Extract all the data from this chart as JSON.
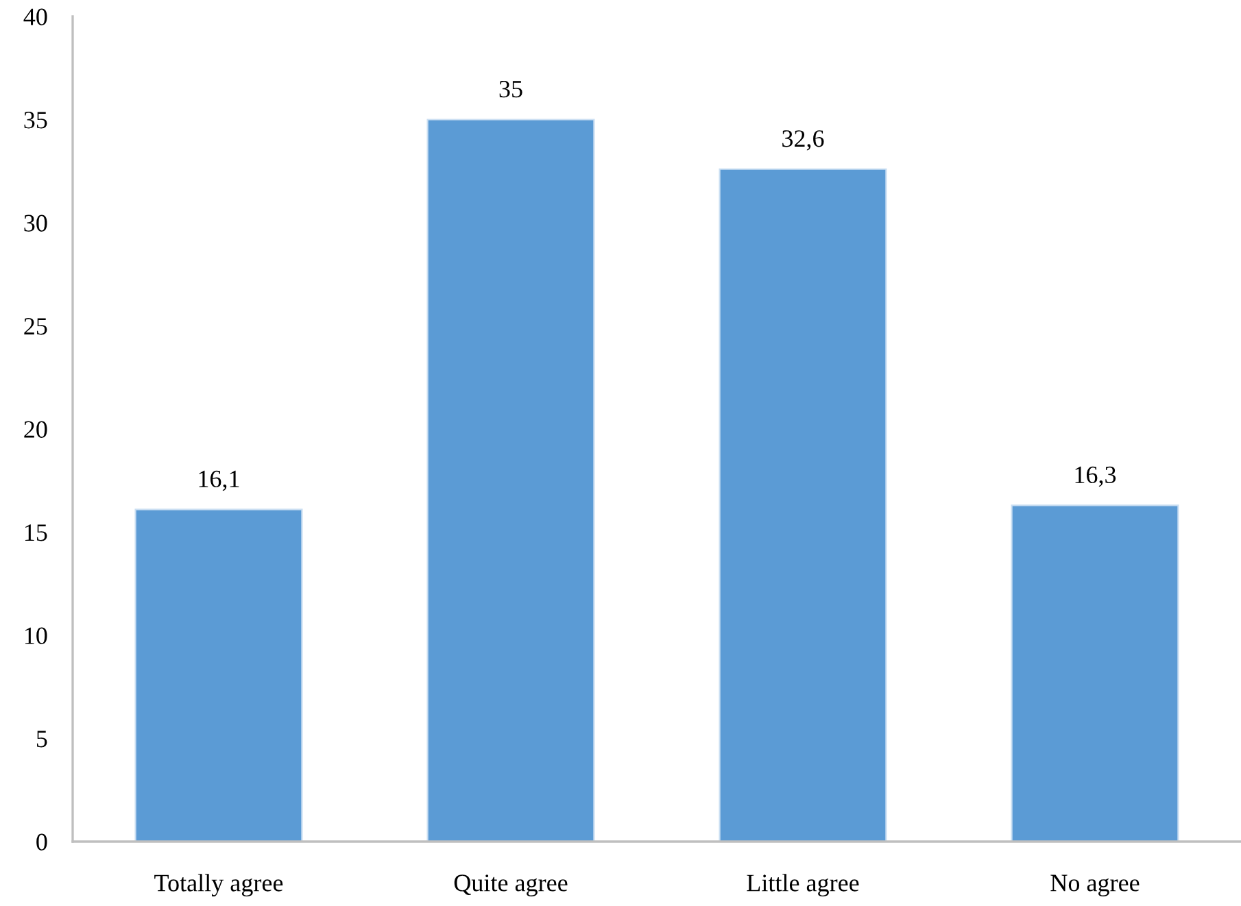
{
  "chart_data": {
    "type": "bar",
    "categories": [
      "Totally agree",
      "Quite agree",
      "Little agree",
      "No agree"
    ],
    "values": [
      16.1,
      35,
      32.6,
      16.3
    ],
    "value_labels": [
      "16,1",
      "35",
      "32,6",
      "16,3"
    ],
    "color": "#5b9bd5",
    "ylim": [
      0,
      40
    ],
    "yticks": [
      0,
      5,
      10,
      15,
      20,
      25,
      30,
      35,
      40
    ],
    "grid": false,
    "legend": false
  }
}
